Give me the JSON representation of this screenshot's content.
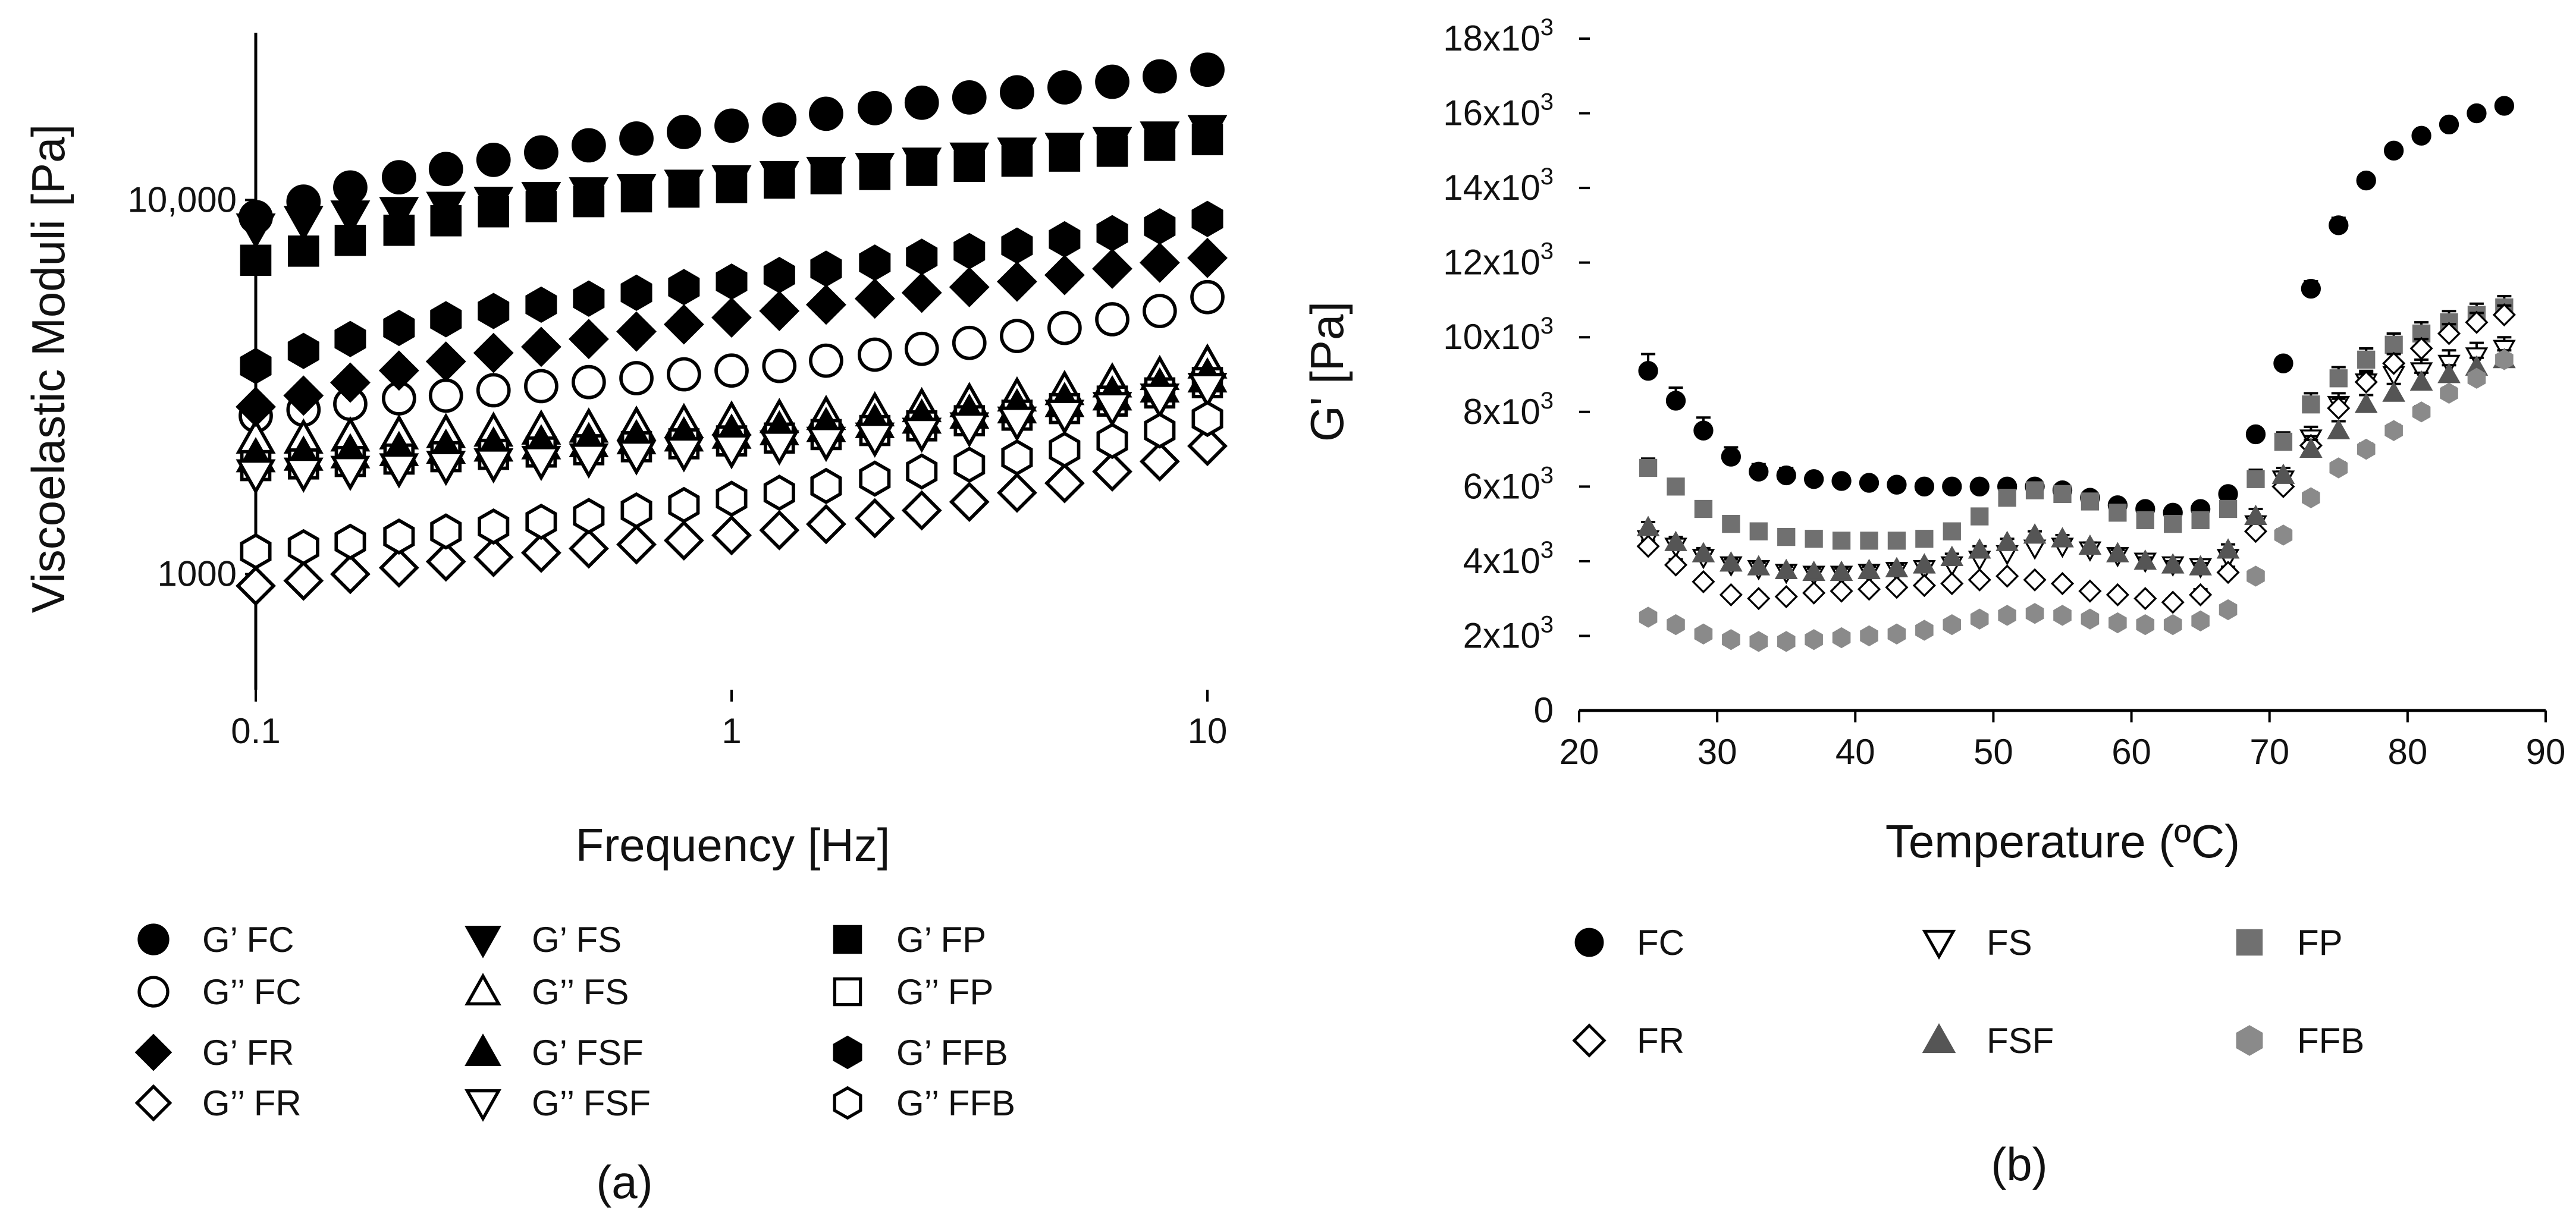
{
  "chart_data": [
    {
      "id": "a",
      "type": "scatter",
      "panel_label": "(a)",
      "xlabel": "Frequency [Hz]",
      "ylabel": "Viscoelastic Moduli [Pa]",
      "xscale": "log",
      "yscale": "log",
      "xlim": [
        0.1,
        10
      ],
      "ylim": [
        500,
        28000
      ],
      "x_ticks": [
        {
          "value": 0.1,
          "label": "0.1"
        },
        {
          "value": 1,
          "label": "1"
        },
        {
          "value": 10,
          "label": "10"
        }
      ],
      "y_ticks": [
        {
          "value": 1000,
          "label": "1000"
        },
        {
          "value": 10000,
          "label": "10,000"
        }
      ],
      "x": [
        0.1,
        0.126,
        0.158,
        0.2,
        0.251,
        0.316,
        0.398,
        0.501,
        0.631,
        0.794,
        1.0,
        1.26,
        1.58,
        2.0,
        2.51,
        3.16,
        3.98,
        5.01,
        6.31,
        7.94,
        10.0
      ],
      "legend_position": "bottom",
      "series": [
        {
          "name": "G’ FC",
          "marker": "circle-filled",
          "values": [
            9000,
            9900,
            10800,
            11500,
            12100,
            12800,
            13400,
            14000,
            14600,
            15200,
            15800,
            16400,
            17000,
            17600,
            18200,
            18800,
            19400,
            20000,
            20700,
            21400,
            22300
          ]
        },
        {
          "name": "G’’ FC",
          "marker": "circle-open",
          "values": [
            2650,
            2750,
            2850,
            2950,
            3000,
            3100,
            3180,
            3260,
            3340,
            3420,
            3500,
            3600,
            3720,
            3860,
            4000,
            4150,
            4330,
            4550,
            4800,
            5050,
            5500
          ]
        },
        {
          "name": "G’ FS",
          "marker": "triangle-down-filled",
          "values": [
            8400,
            8800,
            9100,
            9300,
            9600,
            9900,
            10200,
            10500,
            10700,
            11000,
            11300,
            11600,
            11900,
            12200,
            12600,
            13000,
            13400,
            13800,
            14300,
            14800,
            15400
          ]
        },
        {
          "name": "G’’ FS",
          "marker": "triangle-up-open",
          "values": [
            2300,
            2300,
            2330,
            2360,
            2380,
            2400,
            2430,
            2460,
            2490,
            2530,
            2570,
            2610,
            2660,
            2720,
            2790,
            2880,
            2980,
            3100,
            3250,
            3400,
            3650
          ]
        },
        {
          "name": "G’ FP",
          "marker": "square-filled",
          "values": [
            6900,
            7300,
            7800,
            8300,
            8800,
            9300,
            9600,
            9900,
            10200,
            10500,
            10800,
            11100,
            11400,
            11700,
            12000,
            12300,
            12700,
            13100,
            13500,
            14000,
            14500
          ]
        },
        {
          "name": "G’’ FP",
          "marker": "square-open",
          "values": [
            1950,
            1970,
            2000,
            2030,
            2060,
            2090,
            2120,
            2150,
            2190,
            2230,
            2270,
            2310,
            2360,
            2420,
            2490,
            2570,
            2660,
            2770,
            2900,
            3050,
            3250
          ]
        },
        {
          "name": "G’ FR",
          "marker": "diamond-filled",
          "values": [
            2800,
            3000,
            3250,
            3500,
            3700,
            3900,
            4050,
            4250,
            4450,
            4650,
            4850,
            5050,
            5250,
            5450,
            5650,
            5850,
            6050,
            6300,
            6550,
            6800,
            7000
          ]
        },
        {
          "name": "G’’ FR",
          "marker": "diamond-open",
          "values": [
            930,
            960,
            1000,
            1040,
            1080,
            1110,
            1140,
            1170,
            1200,
            1230,
            1270,
            1310,
            1360,
            1410,
            1480,
            1560,
            1650,
            1750,
            1880,
            2000,
            2200
          ]
        },
        {
          "name": "G’ FSF",
          "marker": "triangle-up-filled",
          "values": [
            2050,
            2070,
            2100,
            2130,
            2160,
            2190,
            2220,
            2250,
            2290,
            2330,
            2370,
            2420,
            2470,
            2530,
            2600,
            2680,
            2770,
            2880,
            3000,
            3150,
            3350
          ]
        },
        {
          "name": "G’’ FSF",
          "marker": "triangle-down-open",
          "values": [
            1850,
            1870,
            1890,
            1920,
            1950,
            1980,
            2010,
            2040,
            2080,
            2120,
            2160,
            2210,
            2260,
            2320,
            2390,
            2470,
            2560,
            2670,
            2800,
            2950,
            3150
          ]
        },
        {
          "name": "G’ FFB",
          "marker": "hexagon-filled",
          "values": [
            3600,
            3950,
            4250,
            4550,
            4800,
            5050,
            5250,
            5450,
            5650,
            5850,
            6050,
            6300,
            6550,
            6800,
            7050,
            7300,
            7550,
            7850,
            8150,
            8500,
            8900
          ]
        },
        {
          "name": "G’’ FFB",
          "marker": "hexagon-open",
          "values": [
            1150,
            1180,
            1220,
            1260,
            1300,
            1340,
            1380,
            1430,
            1480,
            1530,
            1590,
            1650,
            1720,
            1800,
            1880,
            1960,
            2050,
            2150,
            2270,
            2420,
            2600
          ]
        }
      ]
    },
    {
      "id": "b",
      "type": "scatter",
      "panel_label": "(b)",
      "xlabel": "Temperature (ºC)",
      "ylabel": "G' [Pa]",
      "xlim": [
        20,
        90
      ],
      "ylim": [
        0,
        18000
      ],
      "x_ticks": [
        {
          "value": 20,
          "label": "20"
        },
        {
          "value": 30,
          "label": "30"
        },
        {
          "value": 40,
          "label": "40"
        },
        {
          "value": 50,
          "label": "50"
        },
        {
          "value": 60,
          "label": "60"
        },
        {
          "value": 70,
          "label": "70"
        },
        {
          "value": 80,
          "label": "80"
        },
        {
          "value": 90,
          "label": "90"
        }
      ],
      "y_ticks": [
        {
          "value": 0,
          "mantissa": "0",
          "exponent": ""
        },
        {
          "value": 2000,
          "mantissa": "2x10",
          "exponent": "3"
        },
        {
          "value": 4000,
          "mantissa": "4x10",
          "exponent": "3"
        },
        {
          "value": 6000,
          "mantissa": "6x10",
          "exponent": "3"
        },
        {
          "value": 8000,
          "mantissa": "8x10",
          "exponent": "3"
        },
        {
          "value": 10000,
          "mantissa": "10x10",
          "exponent": "3"
        },
        {
          "value": 12000,
          "mantissa": "12x10",
          "exponent": "3"
        },
        {
          "value": 14000,
          "mantissa": "14x10",
          "exponent": "3"
        },
        {
          "value": 16000,
          "mantissa": "16x10",
          "exponent": "3"
        },
        {
          "value": 18000,
          "mantissa": "18x10",
          "exponent": "3"
        }
      ],
      "x": [
        25,
        27,
        29,
        31,
        33,
        35,
        37,
        39,
        41,
        43,
        45,
        47,
        49,
        51,
        53,
        55,
        57,
        59,
        61,
        63,
        65,
        67,
        69,
        71,
        73,
        75,
        77,
        79,
        81,
        83,
        85,
        87
      ],
      "legend_position": "bottom",
      "series": [
        {
          "name": "FC",
          "marker": "circle-filled",
          "color": "#000000",
          "values": [
            9100,
            8300,
            7500,
            6800,
            6400,
            6300,
            6200,
            6150,
            6100,
            6050,
            6000,
            6000,
            6000,
            6000,
            6000,
            5900,
            5700,
            5500,
            5400,
            5300,
            5400,
            5800,
            7400,
            9300,
            11300,
            13000,
            14200,
            15000,
            15400,
            15700,
            16000,
            16200
          ],
          "errors": [
            450,
            350,
            350,
            250,
            200,
            200,
            150,
            150,
            100,
            100,
            100,
            100,
            100,
            100,
            100,
            100,
            100,
            100,
            100,
            100,
            100,
            100,
            150,
            150,
            200,
            200,
            100,
            100,
            100,
            100,
            100,
            150
          ]
        },
        {
          "name": "FS",
          "marker": "triangle-down-open",
          "color": "#000000",
          "values": [
            4600,
            4400,
            4100,
            3900,
            3800,
            3700,
            3650,
            3650,
            3700,
            3750,
            3800,
            3900,
            4050,
            4200,
            4350,
            4400,
            4300,
            4150,
            4000,
            3900,
            3850,
            4100,
            5000,
            6200,
            7300,
            8200,
            8800,
            9000,
            9100,
            9300,
            9500,
            9700
          ],
          "errors": [
            200,
            200,
            150,
            150,
            150,
            100,
            100,
            100,
            100,
            100,
            100,
            100,
            100,
            100,
            100,
            100,
            100,
            100,
            100,
            100,
            100,
            150,
            200,
            200,
            300,
            300,
            300,
            300,
            300,
            350,
            350,
            300
          ]
        },
        {
          "name": "FP",
          "marker": "square-filled",
          "color": "#707070",
          "values": [
            6500,
            6000,
            5400,
            5000,
            4800,
            4650,
            4600,
            4550,
            4550,
            4550,
            4600,
            4800,
            5200,
            5700,
            5900,
            5800,
            5600,
            5300,
            5100,
            5000,
            5100,
            5400,
            6200,
            7200,
            8200,
            8900,
            9400,
            9800,
            10100,
            10400,
            10600,
            10800
          ],
          "errors": [
            250,
            200,
            200,
            150,
            150,
            100,
            100,
            100,
            100,
            100,
            100,
            150,
            200,
            200,
            200,
            150,
            150,
            150,
            150,
            150,
            150,
            200,
            250,
            250,
            300,
            300,
            300,
            300,
            300,
            300,
            300,
            300
          ]
        },
        {
          "name": "FR",
          "marker": "diamond-open",
          "color": "#000000",
          "values": [
            4400,
            3900,
            3450,
            3100,
            3000,
            3050,
            3150,
            3200,
            3250,
            3300,
            3350,
            3400,
            3500,
            3600,
            3500,
            3400,
            3200,
            3100,
            3000,
            2900,
            3100,
            3700,
            4800,
            6000,
            7100,
            8100,
            8800,
            9300,
            9700,
            10100,
            10400,
            10600
          ],
          "errors": [
            150,
            150,
            100,
            100,
            100,
            100,
            100,
            100,
            100,
            100,
            100,
            100,
            100,
            100,
            100,
            100,
            100,
            100,
            100,
            100,
            150,
            150,
            200,
            200,
            250,
            250,
            250,
            250,
            250,
            250,
            250,
            250
          ]
        },
        {
          "name": "FSF",
          "marker": "triangle-up-filled",
          "color": "#555555",
          "values": [
            4900,
            4500,
            4200,
            3950,
            3850,
            3750,
            3700,
            3700,
            3750,
            3800,
            3900,
            4100,
            4300,
            4500,
            4700,
            4600,
            4400,
            4200,
            4000,
            3900,
            3850,
            4300,
            5200,
            6300,
            7000,
            7500,
            8200,
            8500,
            8800,
            9000,
            9200,
            9400
          ],
          "errors": [
            150,
            150,
            150,
            100,
            100,
            100,
            100,
            100,
            100,
            100,
            100,
            100,
            100,
            100,
            100,
            100,
            100,
            100,
            100,
            100,
            100,
            150,
            200,
            200,
            250,
            250,
            250,
            250,
            250,
            250,
            250,
            250
          ]
        },
        {
          "name": "FFB",
          "marker": "hexagon-filled",
          "color": "#8a8a8a",
          "values": [
            2500,
            2300,
            2050,
            1900,
            1850,
            1850,
            1900,
            1950,
            2000,
            2050,
            2150,
            2300,
            2450,
            2550,
            2600,
            2550,
            2450,
            2350,
            2300,
            2300,
            2400,
            2700,
            3600,
            4700,
            5700,
            6500,
            7000,
            7500,
            8000,
            8500,
            8900,
            9400
          ],
          "errors": [
            100,
            100,
            100,
            100,
            100,
            100,
            100,
            100,
            100,
            100,
            100,
            100,
            100,
            100,
            100,
            100,
            100,
            100,
            100,
            100,
            100,
            100,
            150,
            150,
            150,
            150,
            150,
            150,
            150,
            150,
            150,
            150
          ]
        }
      ]
    }
  ]
}
